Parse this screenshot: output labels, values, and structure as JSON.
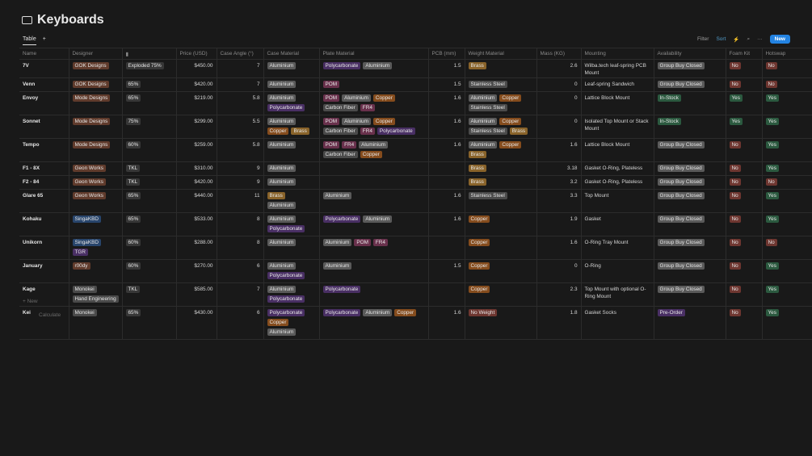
{
  "page": {
    "title": "Keyboards",
    "view_tab": "Table",
    "toolbar": {
      "filter": "Filter",
      "sort": "Sort",
      "new": "New"
    },
    "footer": {
      "new_row": "+ New",
      "calculate": "Calculate"
    }
  },
  "table": {
    "columns": [
      "Name",
      "Designer",
      null,
      "Price (USD)",
      "Case Angle (°)",
      "Case Material",
      "Plate Material",
      "PCB (mm)",
      "Weight Material",
      "Mass (KG)",
      "Mounting",
      "Availability",
      "Foam Kit",
      "Hotswap"
    ],
    "rows": [
      [
        "7V",
        [
          "GOK Designs"
        ],
        [
          "Exploded 75%"
        ],
        "$450.00",
        7,
        [
          "Aluminium"
        ],
        [
          "Polycarbonate",
          "Aluminium"
        ],
        1.5,
        [
          "Brass"
        ],
        2.6,
        "Wilba.tech leaf-spring PCB Mount",
        [
          "Group Buy Closed"
        ],
        [
          "No"
        ],
        [
          "No"
        ]
      ],
      [
        "Venn",
        [
          "GOK Designs"
        ],
        [
          "65%"
        ],
        "$420.00",
        7,
        [
          "Aluminium"
        ],
        [
          "POM"
        ],
        1.5,
        [
          "Stainless Steel"
        ],
        0,
        "Leaf-spring Sandwich",
        [
          "Group Buy Closed"
        ],
        [
          "No"
        ],
        [
          "No"
        ]
      ],
      [
        "Envoy",
        [
          "Mode Designs"
        ],
        [
          "65%"
        ],
        "$219.00",
        5.8,
        [
          "Aluminium",
          "Polycarbonate"
        ],
        [
          "POM",
          "Aluminium",
          "Copper",
          "Carbon Fiber",
          "FR4"
        ],
        1.6,
        [
          "Aluminium",
          "Copper",
          "Stainless Steel"
        ],
        0,
        "Lattice Block Mount",
        [
          "In-Stock"
        ],
        [
          "Yes"
        ],
        [
          "Yes"
        ]
      ],
      [
        "Sonnet",
        [
          "Mode Designs"
        ],
        [
          "75%"
        ],
        "$299.00",
        5.5,
        [
          "Aluminium",
          "Copper",
          "Brass"
        ],
        [
          "POM",
          "Aluminium",
          "Copper",
          "Carbon Fiber",
          "FR4",
          "Polycarbonate"
        ],
        1.6,
        [
          "Aluminium",
          "Copper",
          "Stainless Steel",
          "Brass"
        ],
        0,
        "Isolated Top Mount or Stack Mount",
        [
          "In-Stock"
        ],
        [
          "Yes"
        ],
        [
          "Yes"
        ]
      ],
      [
        "Tempo",
        [
          "Mode Designs"
        ],
        [
          "60%"
        ],
        "$259.00",
        5.8,
        [
          "Aluminium"
        ],
        [
          "POM",
          "FR4",
          "Aluminium",
          "Carbon Fiber",
          "Copper"
        ],
        1.6,
        [
          "Aluminium",
          "Copper",
          "Brass"
        ],
        1.6,
        "Lattice Block Mount",
        [
          "Group Buy Closed"
        ],
        [
          "No"
        ],
        [
          "Yes"
        ]
      ],
      [
        "F1 - 8X",
        [
          "Geon Works"
        ],
        [
          "TKL"
        ],
        "$310.00",
        9,
        [
          "Aluminium"
        ],
        null,
        null,
        [
          "Brass"
        ],
        3.18,
        "Gasket O-Ring, Plateless",
        [
          "Group Buy Closed"
        ],
        [
          "No"
        ],
        [
          "Yes"
        ]
      ],
      [
        "F2 - 84",
        [
          "Geon Works"
        ],
        [
          "TKL"
        ],
        "$420.00",
        9,
        [
          "Aluminium"
        ],
        null,
        null,
        [
          "Brass"
        ],
        3.2,
        "Gasket O-Ring, Plateless",
        [
          "Group Buy Closed"
        ],
        [
          "No"
        ],
        [
          "No"
        ]
      ],
      [
        "Glare 65",
        [
          "Geon Works"
        ],
        [
          "65%"
        ],
        "$440.00",
        11,
        [
          "Brass",
          "Aluminium"
        ],
        [
          "Aluminium"
        ],
        1.6,
        [
          "Stainless Steel"
        ],
        3.3,
        "Top Mount",
        [
          "Group Buy Closed"
        ],
        [
          "No"
        ],
        [
          "Yes"
        ]
      ],
      [
        "Kohaku",
        [
          "SingaKBD"
        ],
        [
          "65%"
        ],
        "$533.00",
        8,
        [
          "Aluminium",
          "Polycarbonate"
        ],
        [
          "Polycarbonate",
          "Aluminium"
        ],
        1.6,
        [
          "Copper"
        ],
        1.9,
        "Gasket",
        [
          "Group Buy Closed"
        ],
        [
          "No"
        ],
        [
          "Yes"
        ]
      ],
      [
        "Unikorn",
        [
          "SingaKBD",
          "TGR"
        ],
        [
          "60%"
        ],
        "$288.00",
        8,
        [
          "Aluminium"
        ],
        [
          "Aluminium",
          "POM",
          "FR4"
        ],
        null,
        [
          "Copper"
        ],
        1.6,
        "O-Ring Tray Mount",
        [
          "Group Buy Closed"
        ],
        [
          "No"
        ],
        [
          "No"
        ]
      ],
      [
        "January",
        [
          "r00dy"
        ],
        [
          "60%"
        ],
        "$270.00",
        6,
        [
          "Aluminium",
          "Polycarbonate"
        ],
        [
          "Aluminium"
        ],
        1.5,
        [
          "Copper"
        ],
        0,
        "O-Ring",
        [
          "Group Buy Closed"
        ],
        [
          "No"
        ],
        [
          "Yes"
        ]
      ],
      [
        "Kage",
        [
          "Monokei",
          "Hand Engineering"
        ],
        [
          "TKL"
        ],
        "$585.00",
        7,
        [
          "Aluminium",
          "Polycarbonate"
        ],
        [
          "Polycarbonate"
        ],
        null,
        [
          "Copper"
        ],
        2.3,
        "Top Mount with optional O-Ring Mount",
        [
          "Group Buy Closed"
        ],
        [
          "No"
        ],
        [
          "Yes"
        ]
      ],
      [
        "Kei",
        [
          "Monokei"
        ],
        [
          "65%"
        ],
        "$430.00",
        6,
        [
          "Polycarbonate",
          "Copper",
          "Aluminium"
        ],
        [
          "Polycarbonate",
          "Aluminium",
          "Copper"
        ],
        1.6,
        [
          "No Weight"
        ],
        1.8,
        "Gasket Socks",
        [
          "Pre-Order"
        ],
        [
          "No"
        ],
        [
          "Yes"
        ]
      ]
    ],
    "tag_colors": {
      "GOK Designs": "#603b2c",
      "Mode Designs": "#603b2c",
      "Geon Works": "#603b2c",
      "SingaKBD": "#28456c",
      "TGR": "#492f64",
      "r00dy": "#603b2c",
      "Monokei": "#4a4a4a",
      "Hand Engineering": "#4a4a4a",
      "Exploded 75%": "#373737",
      "65%": "#373737",
      "75%": "#373737",
      "60%": "#373737",
      "TKL": "#373737",
      "Aluminium": "#5a5a5a",
      "Polycarbonate": "#492f64",
      "POM": "#69314c",
      "Copper": "#854c1d",
      "Brass": "#89632a",
      "Carbon Fiber": "#4a4a4a",
      "FR4": "#69314c",
      "Stainless Steel": "#4a4a4a",
      "No Weight": "#6e3630",
      "Group Buy Closed": "#5a5a5a",
      "In-Stock": "#2b593f",
      "Pre-Order": "#492f64",
      "Yes": "#2b593f",
      "No": "#6e3630"
    }
  }
}
